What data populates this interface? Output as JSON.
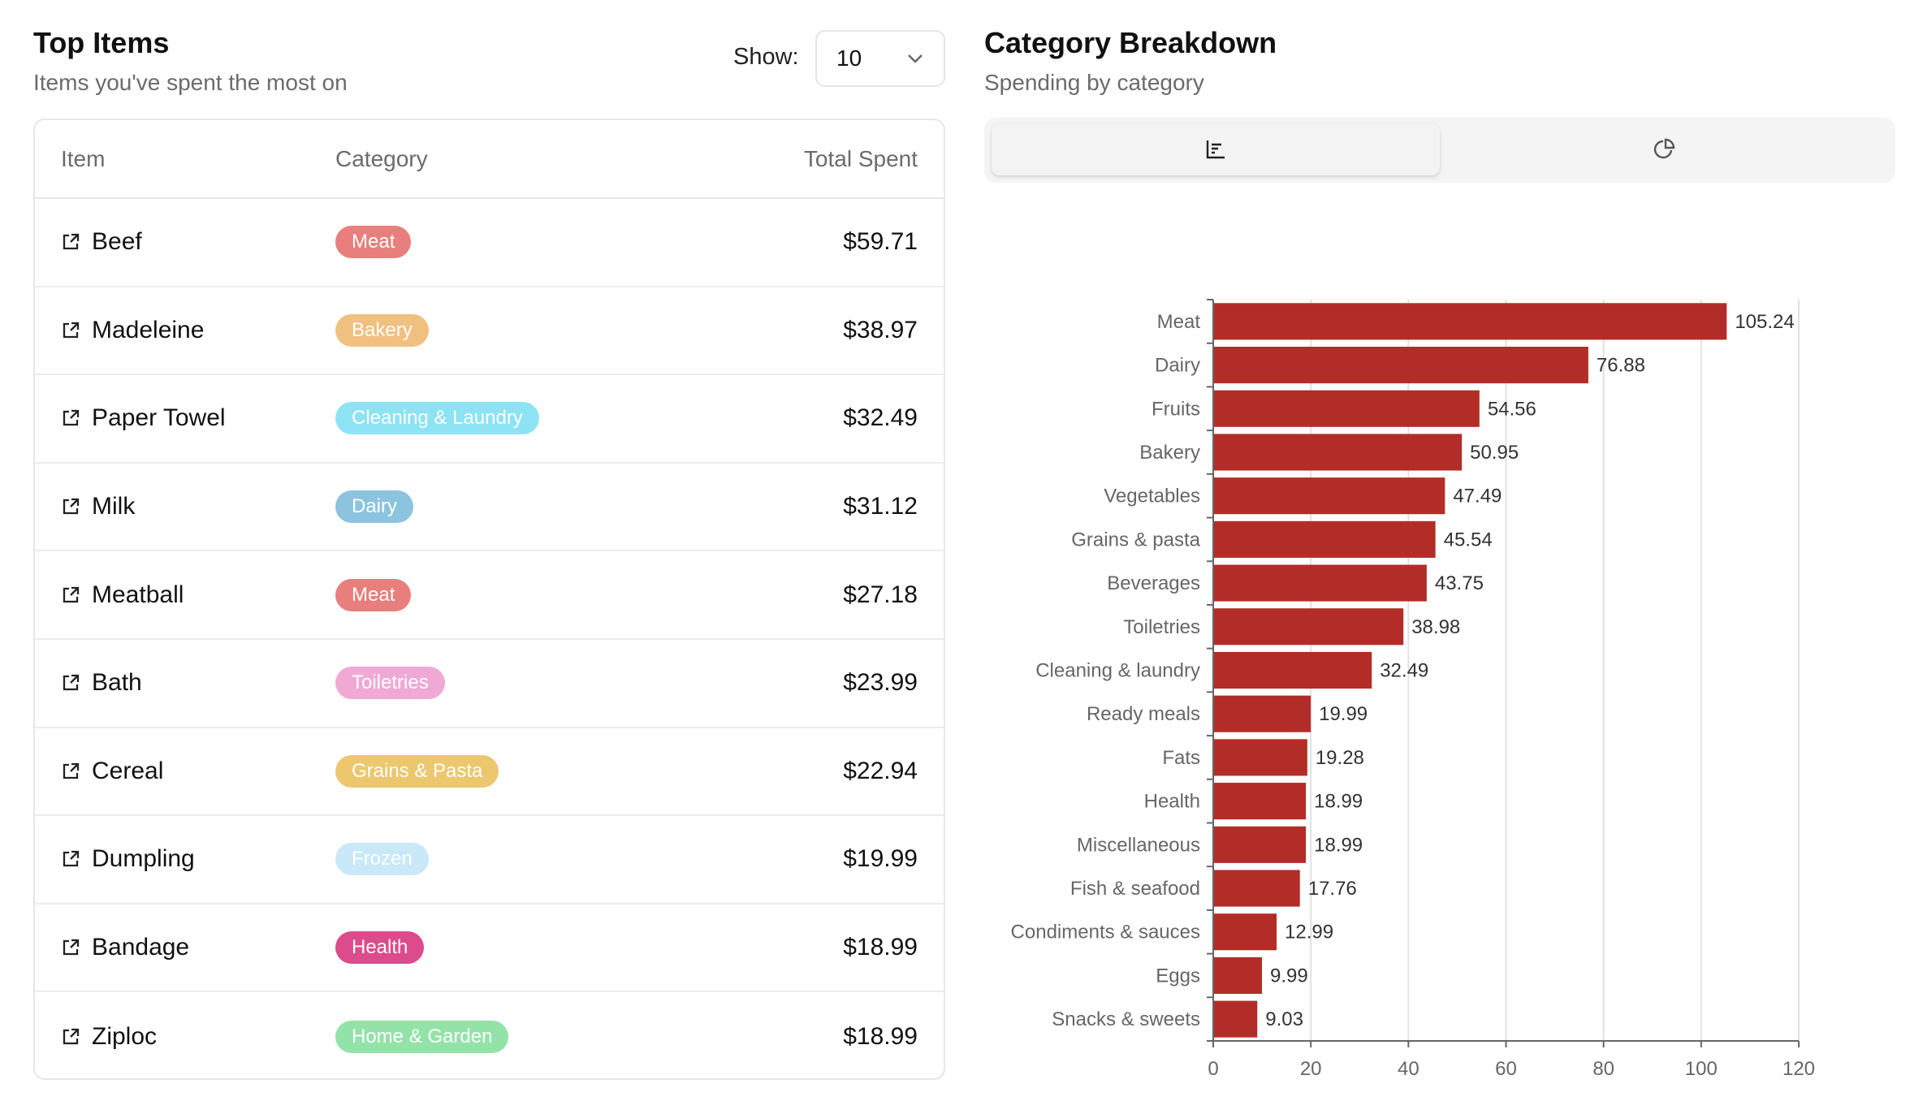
{
  "left": {
    "title": "Top Items",
    "subtitle": "Items you've spent the most on",
    "show_label": "Show:",
    "show_value": "10",
    "columns": [
      "Item",
      "Category",
      "Total Spent"
    ],
    "rows": [
      {
        "item": "Beef",
        "category": "Meat",
        "color": "#e87f7c",
        "total": "$59.71"
      },
      {
        "item": "Madeleine",
        "category": "Bakery",
        "color": "#f0c080",
        "total": "$38.97"
      },
      {
        "item": "Paper Towel",
        "category": "Cleaning & Laundry",
        "color": "#8de3f3",
        "total": "$32.49"
      },
      {
        "item": "Milk",
        "category": "Dairy",
        "color": "#8cc3df",
        "total": "$31.12"
      },
      {
        "item": "Meatball",
        "category": "Meat",
        "color": "#e87f7c",
        "total": "$27.18"
      },
      {
        "item": "Bath",
        "category": "Toiletries",
        "color": "#f0a9d5",
        "total": "$23.99"
      },
      {
        "item": "Cereal",
        "category": "Grains & Pasta",
        "color": "#ecc76e",
        "total": "$22.94"
      },
      {
        "item": "Dumpling",
        "category": "Frozen",
        "color": "#c9e8f8",
        "total": "$19.99"
      },
      {
        "item": "Bandage",
        "category": "Health",
        "color": "#dc4b8b",
        "total": "$18.99"
      },
      {
        "item": "Ziploc",
        "category": "Home & Garden",
        "color": "#93e3a9",
        "total": "$18.99"
      }
    ]
  },
  "right": {
    "title": "Category Breakdown",
    "subtitle": "Spending by category",
    "tabs": [
      {
        "icon": "bar-chart-icon",
        "active": true
      },
      {
        "icon": "pie-chart-icon",
        "active": false
      }
    ]
  },
  "chart_data": {
    "type": "bar",
    "orientation": "horizontal",
    "categories": [
      "Meat",
      "Dairy",
      "Fruits",
      "Bakery",
      "Vegetables",
      "Grains & pasta",
      "Beverages",
      "Toiletries",
      "Cleaning & laundry",
      "Ready meals",
      "Fats",
      "Health",
      "Miscellaneous",
      "Fish & seafood",
      "Condiments & sauces",
      "Eggs",
      "Snacks & sweets"
    ],
    "values": [
      105.24,
      76.88,
      54.56,
      50.95,
      47.49,
      45.54,
      43.75,
      38.98,
      32.49,
      19.99,
      19.28,
      18.99,
      18.99,
      17.76,
      12.99,
      9.99,
      9.03
    ],
    "xlim": [
      0,
      120
    ],
    "xticks": [
      0,
      20,
      40,
      60,
      80,
      100,
      120
    ],
    "grid": true,
    "bar_color": "#b32d28"
  }
}
